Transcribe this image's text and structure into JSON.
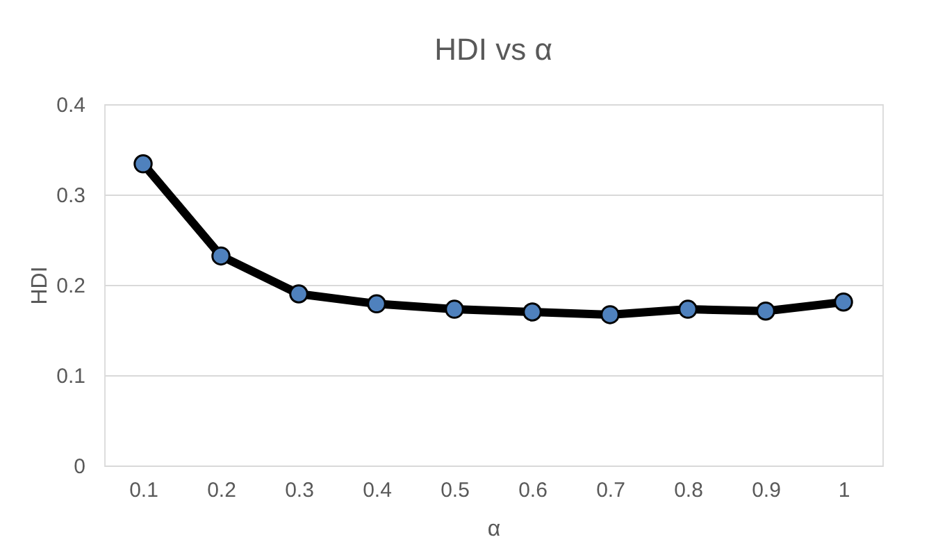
{
  "chart_data": {
    "type": "line",
    "title": "HDI vs α",
    "xlabel": "α",
    "ylabel": "HDI",
    "categories": [
      "0.1",
      "0.2",
      "0.3",
      "0.4",
      "0.5",
      "0.6",
      "0.7",
      "0.8",
      "0.9",
      "1"
    ],
    "series": [
      {
        "color": "#000000",
        "values": [
          0.334,
          0.232,
          0.19,
          0.179,
          0.173,
          0.17,
          0.167,
          0.173,
          0.171,
          0.181
        ]
      }
    ],
    "ylim": [
      0,
      0.4
    ],
    "yticks": [
      {
        "value": 0,
        "label": "0"
      },
      0.1,
      0.2,
      0.3,
      0.4
    ],
    "grid": "y",
    "marker": "circle",
    "line_style": "solid"
  }
}
